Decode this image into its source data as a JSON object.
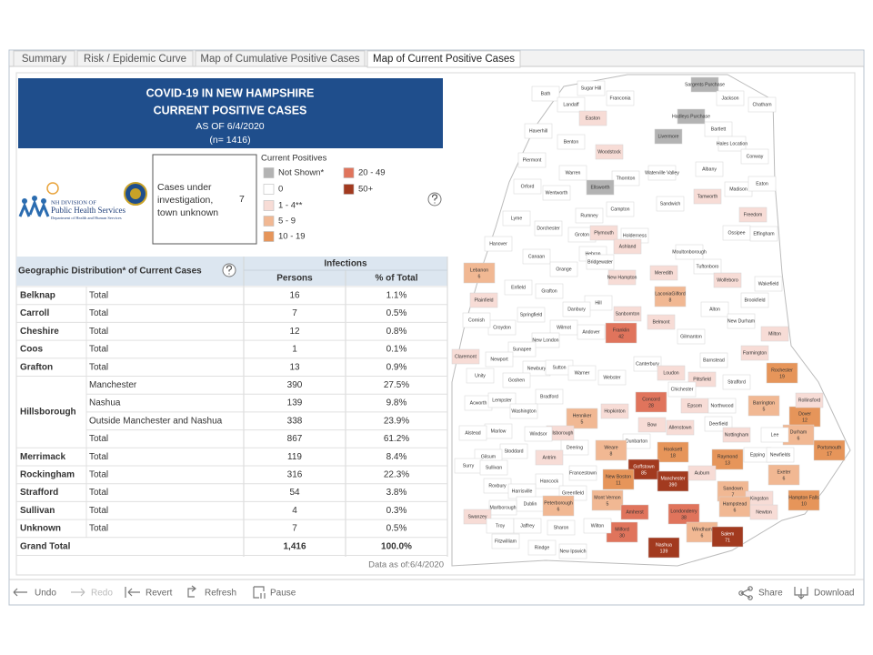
{
  "tabs": [
    "Summary",
    "Risk / Epidemic Curve",
    "Map of Cumulative Positive Cases",
    "Map of Current Positive Cases"
  ],
  "header": {
    "title": "COVID-19 IN NEW HAMPSHIRE",
    "subtitle": "CURRENT POSITIVE CASES",
    "date": "AS OF 6/4/2020",
    "count": "(n= 1416)"
  },
  "logo": {
    "line1": "NH DIVISION OF",
    "line2": "Public Health Services",
    "line3": "Department of Health and Human Services"
  },
  "unknown": {
    "label": [
      "Cases under",
      "investigation,",
      "town unknown"
    ],
    "value": "7"
  },
  "legend": {
    "title": "Current Positives",
    "items": [
      {
        "label": "Not Shown*",
        "color": "#b3b3b3"
      },
      {
        "label": "0",
        "color": "#ffffff"
      },
      {
        "label": "1 - 4**",
        "color": "#f7dcd6"
      },
      {
        "label": "5 - 9",
        "color": "#f1b893"
      },
      {
        "label": "10 - 19",
        "color": "#e6955a"
      },
      {
        "label": "20 - 49",
        "color": "#e0745c"
      },
      {
        "label": "50+",
        "color": "#a23a1f"
      }
    ]
  },
  "table": {
    "group_header": "Infections",
    "row_header": "Geographic Distribution* of Current Cases",
    "columns": [
      "Persons",
      "% of Total"
    ],
    "groups": [
      {
        "county": "Belknap",
        "rows": [
          {
            "label": "Total",
            "persons": "16",
            "pct": "1.1%"
          }
        ]
      },
      {
        "county": "Carroll",
        "rows": [
          {
            "label": "Total",
            "persons": "7",
            "pct": "0.5%"
          }
        ]
      },
      {
        "county": "Cheshire",
        "rows": [
          {
            "label": "Total",
            "persons": "12",
            "pct": "0.8%"
          }
        ]
      },
      {
        "county": "Coos",
        "rows": [
          {
            "label": "Total",
            "persons": "1",
            "pct": "0.1%"
          }
        ]
      },
      {
        "county": "Grafton",
        "rows": [
          {
            "label": "Total",
            "persons": "13",
            "pct": "0.9%"
          }
        ]
      },
      {
        "county": "Hillsborough",
        "rows": [
          {
            "label": "Manchester",
            "persons": "390",
            "pct": "27.5%"
          },
          {
            "label": "Nashua",
            "persons": "139",
            "pct": "9.8%"
          },
          {
            "label": "Outside Manchester and Nashua",
            "persons": "338",
            "pct": "23.9%"
          },
          {
            "label": "Total",
            "persons": "867",
            "pct": "61.2%"
          }
        ]
      },
      {
        "county": "Merrimack",
        "rows": [
          {
            "label": "Total",
            "persons": "119",
            "pct": "8.4%"
          }
        ]
      },
      {
        "county": "Rockingham",
        "rows": [
          {
            "label": "Total",
            "persons": "316",
            "pct": "22.3%"
          }
        ]
      },
      {
        "county": "Strafford",
        "rows": [
          {
            "label": "Total",
            "persons": "54",
            "pct": "3.8%"
          }
        ]
      },
      {
        "county": "Sullivan",
        "rows": [
          {
            "label": "Total",
            "persons": "4",
            "pct": "0.3%"
          }
        ]
      },
      {
        "county": "Unknown",
        "rows": [
          {
            "label": "Total",
            "persons": "7",
            "pct": "0.5%"
          }
        ]
      }
    ],
    "grand_total": {
      "label": "Grand Total",
      "persons": "1,416",
      "pct": "100.0%"
    },
    "footnote": "Data as of:6/4/2020"
  },
  "map": {
    "towns": [
      {
        "name": "Sargents Purchase",
        "color": "#b3b3b3"
      },
      {
        "name": "Bath",
        "color": "#ffffff"
      },
      {
        "name": "Sugar Hill",
        "color": "#ffffff"
      },
      {
        "name": "Franconia",
        "color": "#ffffff"
      },
      {
        "name": "Jackson",
        "color": "#ffffff"
      },
      {
        "name": "Chatham",
        "color": "#ffffff"
      },
      {
        "name": "Landaff",
        "color": "#ffffff"
      },
      {
        "name": "Easton",
        "color": "#f7dcd6"
      },
      {
        "name": "Hadleys Purchase",
        "color": "#b3b3b3"
      },
      {
        "name": "Livermore",
        "color": "#b3b3b3"
      },
      {
        "name": "Haverhill",
        "color": "#ffffff"
      },
      {
        "name": "Bartlett",
        "color": "#ffffff"
      },
      {
        "name": "Hales Location",
        "color": "#ffffff"
      },
      {
        "name": "Benton",
        "color": "#ffffff"
      },
      {
        "name": "Woodstock",
        "color": "#f7dcd6"
      },
      {
        "name": "Conway",
        "color": "#ffffff"
      },
      {
        "name": "Piermont",
        "color": "#ffffff"
      },
      {
        "name": "Warren",
        "color": "#ffffff"
      },
      {
        "name": "Thornton",
        "color": "#ffffff"
      },
      {
        "name": "Waterville Valley",
        "color": "#ffffff"
      },
      {
        "name": "Albany",
        "color": "#ffffff"
      },
      {
        "name": "Madison",
        "color": "#ffffff"
      },
      {
        "name": "Eaton",
        "color": "#ffffff"
      },
      {
        "name": "Orford",
        "color": "#ffffff"
      },
      {
        "name": "Ellsworth",
        "color": "#b3b3b3"
      },
      {
        "name": "Wentworth",
        "color": "#ffffff"
      },
      {
        "name": "Sandwich",
        "color": "#ffffff"
      },
      {
        "name": "Tamworth",
        "color": "#f7dcd6"
      },
      {
        "name": "Campton",
        "color": "#ffffff"
      },
      {
        "name": "Freedom",
        "color": "#f7dcd6"
      },
      {
        "name": "Lyme",
        "color": "#ffffff"
      },
      {
        "name": "Rumney",
        "color": "#ffffff"
      },
      {
        "name": "Dorchester",
        "color": "#ffffff"
      },
      {
        "name": "Groton",
        "color": "#ffffff"
      },
      {
        "name": "Plymouth",
        "color": "#f7dcd6"
      },
      {
        "name": "Holderness",
        "color": "#ffffff"
      },
      {
        "name": "Ossipee",
        "color": "#ffffff"
      },
      {
        "name": "Effingham",
        "color": "#ffffff"
      },
      {
        "name": "Hanover",
        "color": "#ffffff"
      },
      {
        "name": "Canaan",
        "color": "#ffffff"
      },
      {
        "name": "Moultonborough",
        "color": "#ffffff"
      },
      {
        "name": "Hebron",
        "color": "#ffffff"
      },
      {
        "name": "Ashland",
        "color": "#f7dcd6"
      },
      {
        "name": "Orange",
        "color": "#ffffff"
      },
      {
        "name": "Bridgewater",
        "color": "#ffffff"
      },
      {
        "name": "Tuftonboro",
        "color": "#ffffff"
      },
      {
        "name": "Lebanon",
        "value": "6",
        "color": "#f1b893"
      },
      {
        "name": "Meredith",
        "color": "#f7dcd6"
      },
      {
        "name": "New Hampton",
        "color": "#f7dcd6"
      },
      {
        "name": "Wolfeboro",
        "color": "#f7dcd6"
      },
      {
        "name": "Wakefield",
        "color": "#ffffff"
      },
      {
        "name": "Enfield",
        "color": "#ffffff"
      },
      {
        "name": "Grafton",
        "color": "#ffffff"
      },
      {
        "name": "LaconiaGilford",
        "value": "8",
        "color": "#f1b893"
      },
      {
        "name": "Plainfield",
        "color": "#f7dcd6"
      },
      {
        "name": "Hill",
        "color": "#ffffff"
      },
      {
        "name": "Brookfield",
        "color": "#ffffff"
      },
      {
        "name": "Danbury",
        "color": "#ffffff"
      },
      {
        "name": "Sanbornton",
        "color": "#f7dcd6"
      },
      {
        "name": "Alton",
        "color": "#ffffff"
      },
      {
        "name": "Croydon",
        "color": "#ffffff"
      },
      {
        "name": "Springfield",
        "color": "#ffffff"
      },
      {
        "name": "Franklin",
        "value": "42",
        "color": "#e0745c"
      },
      {
        "name": "Belmont",
        "color": "#f7dcd6"
      },
      {
        "name": "New Durham",
        "color": "#ffffff"
      },
      {
        "name": "Cornish",
        "color": "#ffffff"
      },
      {
        "name": "Wilmot",
        "color": "#ffffff"
      },
      {
        "name": "Andover",
        "color": "#ffffff"
      },
      {
        "name": "Milton",
        "color": "#f7dcd6"
      },
      {
        "name": "New London",
        "color": "#ffffff"
      },
      {
        "name": "Gilmanton",
        "color": "#ffffff"
      },
      {
        "name": "Sunapee",
        "color": "#ffffff"
      },
      {
        "name": "Claremont",
        "color": "#f7dcd6"
      },
      {
        "name": "Newport",
        "color": "#ffffff"
      },
      {
        "name": "Farmington",
        "color": "#f7dcd6"
      },
      {
        "name": "Barnstead",
        "color": "#ffffff"
      },
      {
        "name": "Newbury",
        "color": "#ffffff"
      },
      {
        "name": "Sutton",
        "color": "#ffffff"
      },
      {
        "name": "Canterbury",
        "color": "#ffffff"
      },
      {
        "name": "Rochester",
        "value": "19",
        "color": "#e6955a"
      },
      {
        "name": "Unity",
        "color": "#ffffff"
      },
      {
        "name": "Loudon",
        "color": "#f7dcd6"
      },
      {
        "name": "Goshen",
        "color": "#ffffff"
      },
      {
        "name": "Warner",
        "color": "#ffffff"
      },
      {
        "name": "Webster",
        "color": "#ffffff"
      },
      {
        "name": "Pittsfield",
        "color": "#f7dcd6"
      },
      {
        "name": "Strafford",
        "color": "#ffffff"
      },
      {
        "name": "Concord",
        "value": "28",
        "color": "#e0745c"
      },
      {
        "name": "Chichester",
        "color": "#ffffff"
      },
      {
        "name": "Barrington",
        "value": "5",
        "color": "#f1b893"
      },
      {
        "name": "Dover",
        "value": "12",
        "color": "#e6955a"
      },
      {
        "name": "Rollinsford",
        "color": "#f7dcd6"
      },
      {
        "name": "Acworth",
        "color": "#ffffff"
      },
      {
        "name": "Lempster",
        "color": "#ffffff"
      },
      {
        "name": "Bradford",
        "color": "#ffffff"
      },
      {
        "name": "Washington",
        "color": "#ffffff"
      },
      {
        "name": "Henniker",
        "value": "5",
        "color": "#f1b893"
      },
      {
        "name": "Hopkinton",
        "color": "#f7dcd6"
      },
      {
        "name": "Epsom",
        "color": "#f7dcd6"
      },
      {
        "name": "Northwood",
        "color": "#ffffff"
      },
      {
        "name": "Bow",
        "color": "#f7dcd6"
      },
      {
        "name": "Allenstown",
        "color": "#f7dcd6"
      },
      {
        "name": "Deerfield",
        "color": "#ffffff"
      },
      {
        "name": "Nottingham",
        "color": "#f7dcd6"
      },
      {
        "name": "Durham",
        "value": "6",
        "color": "#f1b893"
      },
      {
        "name": "Lee",
        "color": "#ffffff"
      },
      {
        "name": "Hillsborough",
        "color": "#f7dcd6"
      },
      {
        "name": "Windsor",
        "color": "#ffffff"
      },
      {
        "name": "Marlow",
        "color": "#ffffff"
      },
      {
        "name": "Alstead",
        "color": "#ffffff"
      },
      {
        "name": "Dunbarton",
        "color": "#ffffff"
      },
      {
        "name": "Portsmouth",
        "value": "17",
        "color": "#e6955a"
      },
      {
        "name": "Weare",
        "value": "8",
        "color": "#f1b893"
      },
      {
        "name": "Deering",
        "color": "#ffffff"
      },
      {
        "name": "Hooksett",
        "value": "18",
        "color": "#e6955a"
      },
      {
        "name": "Raymond",
        "value": "13",
        "color": "#e6955a"
      },
      {
        "name": "Epping",
        "color": "#ffffff"
      },
      {
        "name": "Newfields",
        "color": "#ffffff"
      },
      {
        "name": "Goffstown",
        "value": "85",
        "color": "#a23a1f"
      },
      {
        "name": "Stoddard",
        "color": "#ffffff"
      },
      {
        "name": "Antrim",
        "color": "#f7dcd6"
      },
      {
        "name": "Gilsum",
        "color": "#ffffff"
      },
      {
        "name": "Surry",
        "color": "#ffffff"
      },
      {
        "name": "Sullivan",
        "color": "#ffffff"
      },
      {
        "name": "Manchester",
        "value": "390",
        "color": "#a23a1f"
      },
      {
        "name": "Francestown",
        "color": "#ffffff"
      },
      {
        "name": "New Boston",
        "value": "11",
        "color": "#e6955a"
      },
      {
        "name": "Exeter",
        "value": "6",
        "color": "#f1b893"
      },
      {
        "name": "Auburn",
        "color": "#f7dcd6"
      },
      {
        "name": "Hancock",
        "color": "#ffffff"
      },
      {
        "name": "Roxbury",
        "color": "#ffffff"
      },
      {
        "name": "Sandown",
        "value": "7",
        "color": "#f1b893"
      },
      {
        "name": "Kingston",
        "color": "#f7dcd6"
      },
      {
        "name": "Harrisville",
        "color": "#ffffff"
      },
      {
        "name": "Greenfield",
        "color": "#ffffff"
      },
      {
        "name": "Hampton Falls",
        "value": "10",
        "color": "#e6955a"
      },
      {
        "name": "Dublin",
        "color": "#ffffff"
      },
      {
        "name": "Peterborough",
        "value": "6",
        "color": "#f1b893"
      },
      {
        "name": "Mont Vernon",
        "value": "5",
        "color": "#f1b893"
      },
      {
        "name": "Londonderry",
        "value": "38",
        "color": "#e0745c"
      },
      {
        "name": "Hampstead",
        "value": "6",
        "color": "#f1b893"
      },
      {
        "name": "Newton",
        "color": "#f7dcd6"
      },
      {
        "name": "Marlborough",
        "color": "#ffffff"
      },
      {
        "name": "Amherst",
        "color": "#e0745c"
      },
      {
        "name": "Swanzey",
        "color": "#f7dcd6"
      },
      {
        "name": "Milford",
        "value": "30",
        "color": "#e0745c"
      },
      {
        "name": "Windham",
        "value": "6",
        "color": "#f1b893"
      },
      {
        "name": "Salem",
        "value": "71",
        "color": "#a23a1f"
      },
      {
        "name": "Troy",
        "color": "#ffffff"
      },
      {
        "name": "Jaffrey",
        "color": "#ffffff"
      },
      {
        "name": "Sharon",
        "color": "#ffffff"
      },
      {
        "name": "Wilton",
        "color": "#ffffff"
      },
      {
        "name": "Nashua",
        "value": "139",
        "color": "#a23a1f"
      },
      {
        "name": "Fitzwilliam",
        "color": "#ffffff"
      },
      {
        "name": "Rindge",
        "color": "#ffffff"
      },
      {
        "name": "New Ipswich",
        "color": "#ffffff"
      }
    ]
  },
  "toolbar": [
    "Undo",
    "Redo",
    "Revert",
    "Refresh",
    "Pause",
    "Share",
    "Download"
  ]
}
